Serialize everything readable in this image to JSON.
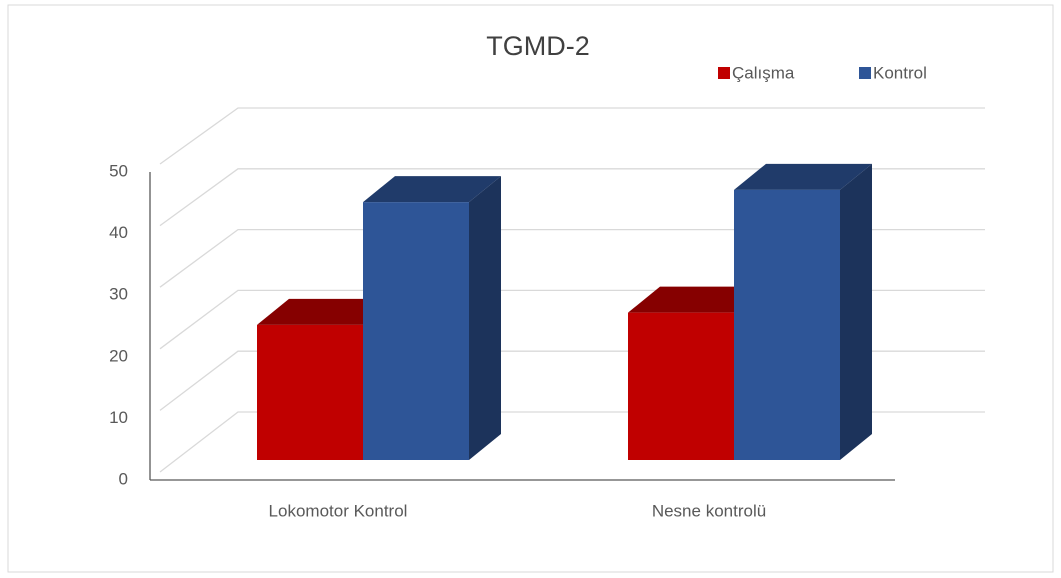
{
  "chart_data": {
    "type": "bar3d",
    "title": "TGMD-2",
    "categories": [
      "Lokomotor Kontrol",
      "Nesne kontrolü"
    ],
    "series": [
      {
        "name": "Çalışma",
        "color": "#c00000",
        "values": [
          22,
          24
        ]
      },
      {
        "name": "Kontrol",
        "color": "#2e5597",
        "values": [
          42,
          44
        ]
      }
    ],
    "ylim": [
      0,
      50
    ],
    "yticks": [
      0,
      10,
      20,
      30,
      40,
      50
    ],
    "grid": true,
    "legend": "top-right"
  }
}
